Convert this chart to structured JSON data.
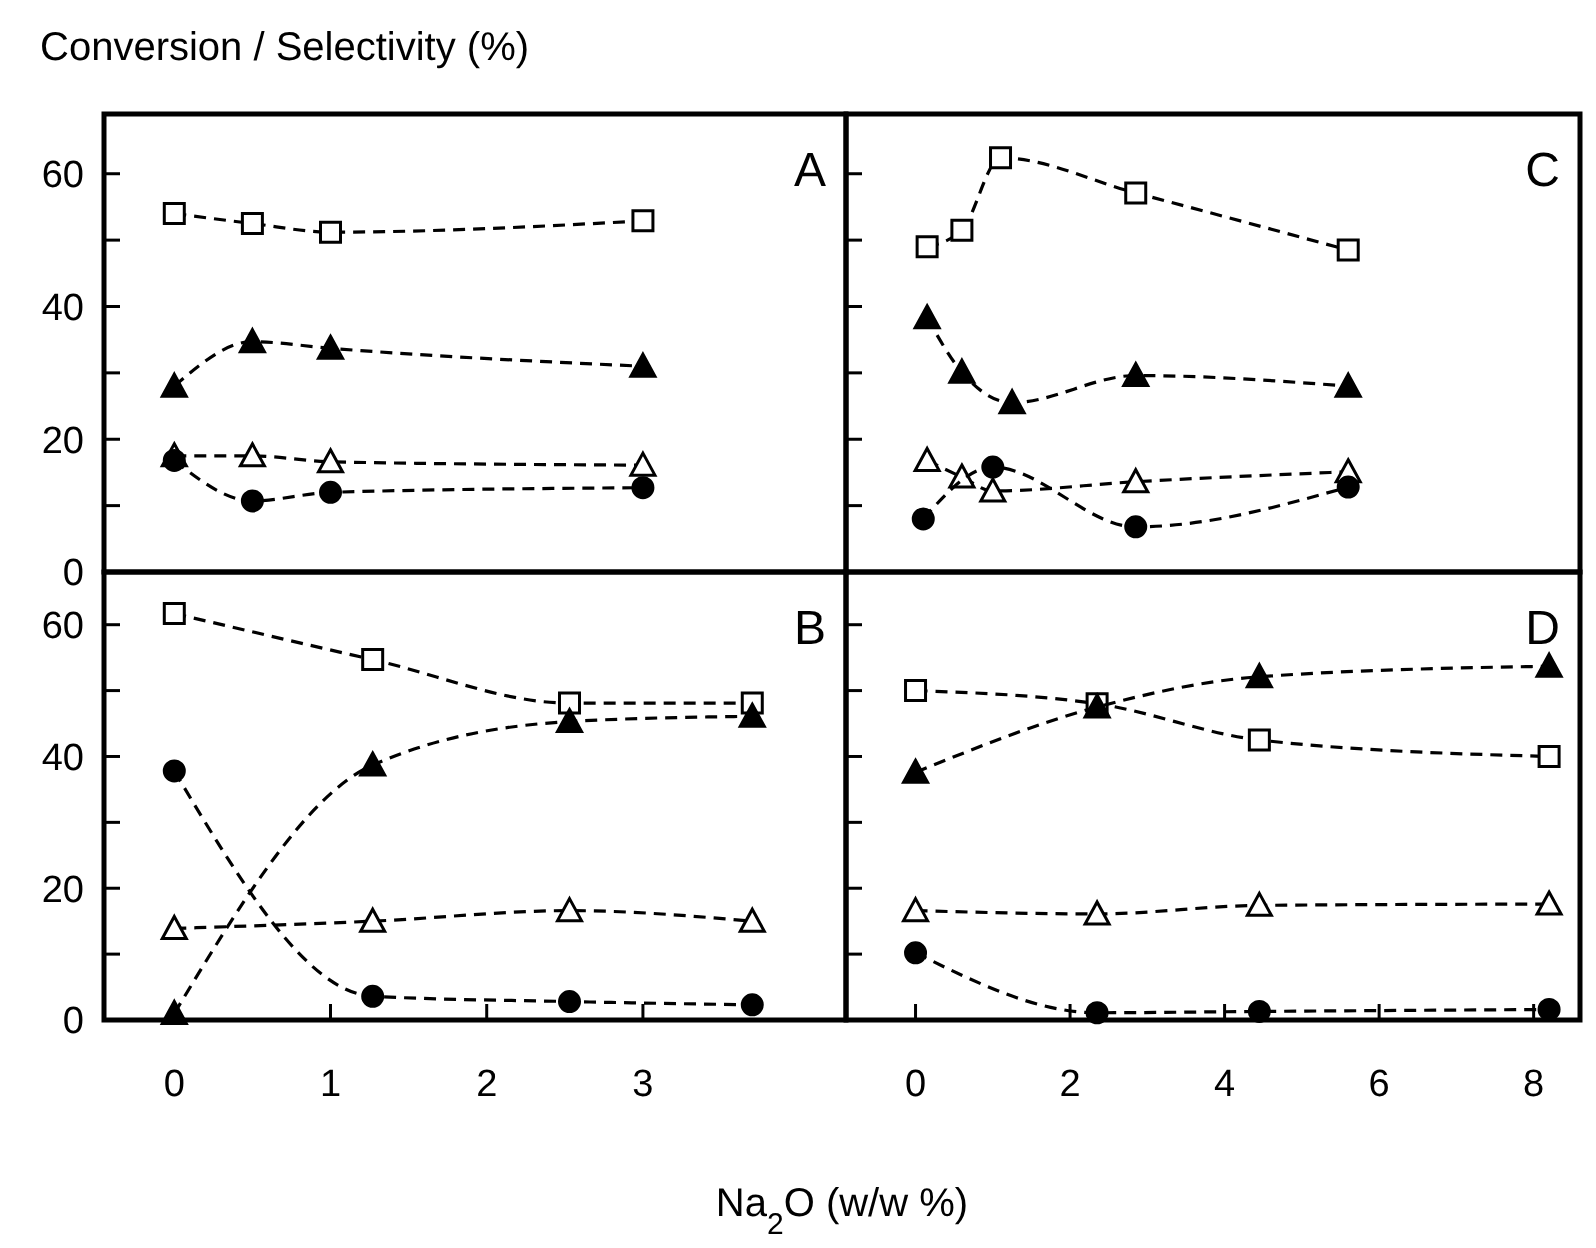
{
  "chart_data": [
    {
      "type": "line",
      "title": "Conversion / Selectivity (%)",
      "xlim": [
        -0.45,
        4.3
      ],
      "ylim": [
        0,
        69
      ],
      "yticks": [
        0,
        {
          "value": 10,
          "label": null
        },
        20,
        {
          "value": 30,
          "label": null
        },
        40,
        {
          "value": 50,
          "label": null
        },
        60
      ],
      "tick_labels": "y",
      "line_style": "dashed",
      "annotations": [
        "A"
      ],
      "series": [
        {
          "color": "#ffffff",
          "marker": "square",
          "x": [
            0,
            0.5,
            1.0,
            3.0
          ],
          "values": [
            54,
            52.5,
            51.2,
            52.9
          ]
        },
        {
          "color": "#000000",
          "marker": "triangle",
          "x": [
            0,
            0.5,
            1.0,
            3.0
          ],
          "values": [
            28,
            34.7,
            33.7,
            31
          ]
        },
        {
          "color": "#ffffff",
          "marker": "triangle",
          "x": [
            0,
            0.5,
            1.0,
            3.0
          ],
          "values": [
            17.5,
            17.5,
            16.6,
            16.1
          ]
        },
        {
          "color": "#000000",
          "marker": "circle",
          "x": [
            0,
            0.5,
            1.0,
            3.0
          ],
          "values": [
            16.8,
            10.7,
            12,
            12.7
          ]
        }
      ]
    },
    {
      "type": "line",
      "xlim": [
        -0.9,
        8.6
      ],
      "ylim": [
        0,
        69
      ],
      "yticks": [
        0,
        {
          "value": 10,
          "label": null
        },
        20,
        {
          "value": 30,
          "label": null
        },
        40,
        {
          "value": 50,
          "label": null
        },
        60
      ],
      "tick_labels": false,
      "line_style": "dashed",
      "annotations": [
        "C"
      ],
      "series": [
        {
          "color": "#ffffff",
          "marker": "square",
          "x": [
            0.15,
            0.6,
            1.1,
            2.85,
            5.6
          ],
          "values": [
            49,
            51.5,
            62.4,
            57.1,
            48.5
          ]
        },
        {
          "color": "#000000",
          "marker": "triangle",
          "x": [
            0.15,
            0.6,
            1.25,
            2.85,
            5.6
          ],
          "values": [
            38.3,
            30.1,
            25.5,
            29.6,
            28
          ]
        },
        {
          "color": "#ffffff",
          "marker": "triangle",
          "x": [
            0.15,
            0.6,
            1.0,
            2.85,
            5.6
          ],
          "values": [
            16.8,
            14.3,
            12.2,
            13.6,
            15.1
          ]
        },
        {
          "color": "#000000",
          "marker": "circle",
          "x": [
            0.1,
            1.0,
            2.85,
            5.6
          ],
          "values": [
            8,
            15.8,
            6.8,
            12.8
          ]
        }
      ]
    },
    {
      "type": "line",
      "xlabel": "Na$_{2}$O (w/w %)",
      "xlim": [
        -0.45,
        4.3
      ],
      "ylim": [
        0,
        68
      ],
      "xticks": [
        0,
        1,
        2,
        3
      ],
      "yticks": [
        0,
        {
          "value": 10,
          "label": null
        },
        20,
        {
          "value": 30,
          "label": null
        },
        40,
        {
          "value": 50,
          "label": null
        },
        60
      ],
      "line_style": "dashed",
      "annotations": [
        "B"
      ],
      "series": [
        {
          "color": "#ffffff",
          "marker": "square",
          "x": [
            0,
            1.27,
            2.53,
            3.7
          ],
          "values": [
            61.7,
            54.7,
            48.1,
            48.1
          ]
        },
        {
          "color": "#000000",
          "marker": "triangle",
          "x": [
            0,
            1.27,
            2.53,
            3.7
          ],
          "values": [
            1,
            38.7,
            45.3,
            46.1
          ]
        },
        {
          "color": "#ffffff",
          "marker": "triangle",
          "x": [
            0,
            1.27,
            2.53,
            3.7
          ],
          "values": [
            13.9,
            15,
            16.6,
            15
          ]
        },
        {
          "color": "#000000",
          "marker": "circle",
          "x": [
            0,
            1.27,
            2.53,
            3.7
          ],
          "values": [
            37.8,
            3.6,
            2.8,
            2.3
          ]
        }
      ]
    },
    {
      "type": "line",
      "xlim": [
        -0.9,
        8.6
      ],
      "ylim": [
        0,
        68
      ],
      "xticks": [
        0,
        2,
        4,
        6,
        8
      ],
      "yticks": [
        0,
        {
          "value": 10,
          "label": null
        },
        20,
        {
          "value": 30,
          "label": null
        },
        40,
        {
          "value": 50,
          "label": null
        },
        60
      ],
      "tick_labels": "x",
      "line_style": "dashed",
      "annotations": [
        "D"
      ],
      "series": [
        {
          "color": "#ffffff",
          "marker": "square",
          "x": [
            0,
            2.35,
            4.45,
            8.2
          ],
          "values": [
            50,
            48,
            42.5,
            40
          ]
        },
        {
          "color": "#000000",
          "marker": "triangle",
          "x": [
            0,
            2.35,
            4.45,
            8.2
          ],
          "values": [
            37.6,
            47.5,
            52.1,
            53.7
          ]
        },
        {
          "color": "#ffffff",
          "marker": "triangle",
          "x": [
            0,
            2.35,
            4.45,
            8.2
          ],
          "values": [
            16.6,
            16.1,
            17.4,
            17.6
          ]
        },
        {
          "color": "#000000",
          "marker": "circle",
          "x": [
            0,
            2.35,
            4.45,
            8.2
          ],
          "values": [
            10.2,
            1.1,
            1.3,
            1.6
          ]
        }
      ]
    }
  ]
}
